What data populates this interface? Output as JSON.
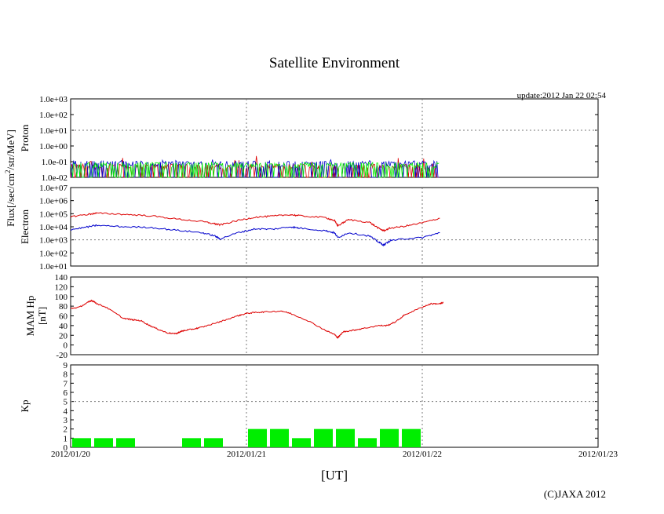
{
  "title": "Satellite Environment",
  "update_text": "update:2012 Jan 22 02:54",
  "copyright": "(C)JAXA 2012",
  "shared_ylabel": "Flux[/sec/cm²/str/MeV]",
  "xlabel": "[UT]",
  "colors": {
    "red": "#dd0000",
    "blue": "#0000cc",
    "green": "#00ee00",
    "grid": "#777777"
  },
  "chart_data": [
    {
      "type": "line",
      "name": "Proton",
      "ylabel": "Proton",
      "yscale": "log",
      "ylim": [
        0.01,
        1000
      ],
      "y_ticks": [
        "1.0e+03",
        "1.0e+02",
        "1.0e+01",
        "1.0e+00",
        "1.0e-01",
        "1.0e-02"
      ],
      "xlim_days": [
        0,
        3
      ],
      "x_ticks": [
        "2012/01/20",
        "2012/01/21",
        "2012/01/22",
        "2012/01/23"
      ],
      "data_end_day": 2.1,
      "series": [
        {
          "color": "red",
          "typical": 0.05,
          "spike_max": 0.25
        },
        {
          "color": "blue",
          "typical": 0.08,
          "spike_max": 0.14
        },
        {
          "color": "green",
          "typical": 0.065,
          "spike_max": 0.09
        }
      ]
    },
    {
      "type": "line",
      "name": "Electron",
      "ylabel": "Electron",
      "yscale": "log",
      "ylim": [
        10,
        10000000
      ],
      "y_ticks": [
        "1.0e+07",
        "1.0e+06",
        "1.0e+05",
        "1.0e+04",
        "1.0e+03",
        "1.0e+02",
        "1.0e+01"
      ],
      "xlim_days": [
        0,
        3
      ],
      "series": [
        {
          "color": "red",
          "x": [
            0,
            0.1,
            0.15,
            0.3,
            0.45,
            0.6,
            0.75,
            0.82,
            0.85,
            0.95,
            1.05,
            1.15,
            1.25,
            1.3,
            1.45,
            1.5,
            1.52,
            1.58,
            1.7,
            1.75,
            1.78,
            1.82,
            1.9,
            2.0,
            2.1
          ],
          "y": [
            60000,
            90000,
            110000,
            90000,
            70000,
            40000,
            25000,
            17000,
            14000,
            30000,
            55000,
            65000,
            85000,
            70000,
            50000,
            30000,
            12000,
            35000,
            22000,
            8000,
            5000,
            8000,
            11000,
            20000,
            45000
          ]
        },
        {
          "color": "blue",
          "x": [
            0,
            0.1,
            0.15,
            0.3,
            0.45,
            0.6,
            0.75,
            0.82,
            0.85,
            0.95,
            1.05,
            1.15,
            1.25,
            1.3,
            1.45,
            1.5,
            1.52,
            1.58,
            1.7,
            1.75,
            1.78,
            1.82,
            1.9,
            2.0,
            2.1
          ],
          "y": [
            6000,
            10000,
            13000,
            10000,
            9000,
            5500,
            3500,
            2000,
            1200,
            3500,
            7000,
            6500,
            10000,
            8000,
            5000,
            3500,
            1500,
            3500,
            2000,
            700,
            400,
            900,
            1200,
            1500,
            3500
          ]
        }
      ]
    },
    {
      "type": "line",
      "name": "MAM Hp",
      "ylabel": "MAM Hp",
      "yunit": "[nT]",
      "ylim": [
        -20,
        140
      ],
      "y_ticks": [
        "140",
        "120",
        "100",
        "80",
        "60",
        "40",
        "20",
        "0",
        "-20"
      ],
      "xlim_days": [
        0,
        3
      ],
      "series": [
        {
          "color": "red",
          "x": [
            0,
            0.05,
            0.1,
            0.12,
            0.15,
            0.2,
            0.3,
            0.35,
            0.4,
            0.45,
            0.5,
            0.55,
            0.6,
            0.62,
            0.65,
            0.7,
            0.75,
            0.85,
            0.95,
            1.0,
            1.05,
            1.1,
            1.2,
            1.25,
            1.35,
            1.45,
            1.5,
            1.52,
            1.55,
            1.6,
            1.65,
            1.75,
            1.8,
            1.85,
            1.9,
            2.0,
            2.05,
            2.1,
            2.12
          ],
          "y": [
            75,
            78,
            88,
            92,
            85,
            78,
            55,
            52,
            50,
            40,
            32,
            25,
            23,
            27,
            30,
            33,
            37,
            48,
            60,
            65,
            67,
            68,
            70,
            65,
            50,
            30,
            22,
            15,
            27,
            30,
            33,
            40,
            40,
            48,
            62,
            78,
            85,
            85,
            87
          ]
        }
      ]
    },
    {
      "type": "bar",
      "name": "Kp",
      "ylabel": "Kp",
      "ylim": [
        0,
        9
      ],
      "y_ticks": [
        "9",
        "8",
        "7",
        "6",
        "5",
        "4",
        "3",
        "2",
        "1",
        "0"
      ],
      "xlim_days": [
        0,
        3
      ],
      "bar_width_days": 0.125,
      "reference_line": 5,
      "color": "green",
      "bars": [
        {
          "start": 0.0,
          "value": 1
        },
        {
          "start": 0.125,
          "value": 1
        },
        {
          "start": 0.25,
          "value": 1
        },
        {
          "start": 0.625,
          "value": 1
        },
        {
          "start": 0.75,
          "value": 1
        },
        {
          "start": 1.0,
          "value": 2
        },
        {
          "start": 1.125,
          "value": 2
        },
        {
          "start": 1.25,
          "value": 1
        },
        {
          "start": 1.375,
          "value": 2
        },
        {
          "start": 1.5,
          "value": 2
        },
        {
          "start": 1.625,
          "value": 1
        },
        {
          "start": 1.75,
          "value": 2
        },
        {
          "start": 1.875,
          "value": 2
        }
      ]
    }
  ]
}
